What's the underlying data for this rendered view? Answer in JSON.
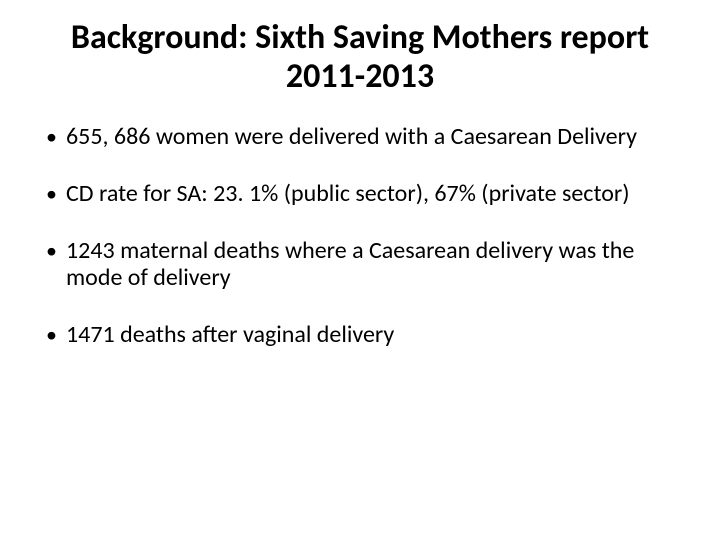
{
  "slide": {
    "title": "Background: Sixth Saving Mothers report 2011-2013",
    "title_fontsize": 34,
    "title_weight": 700,
    "text_color": "#000000",
    "background_color": "#ffffff",
    "body_fontsize": 24,
    "bullets": [
      "655, 686 women were delivered with a Caesarean Delivery",
      "CD rate for SA: 23. 1% (public sector), 67% (private sector)",
      "1243 maternal deaths where a Caesarean delivery was the mode of delivery",
      "1471 deaths after vaginal delivery"
    ]
  }
}
